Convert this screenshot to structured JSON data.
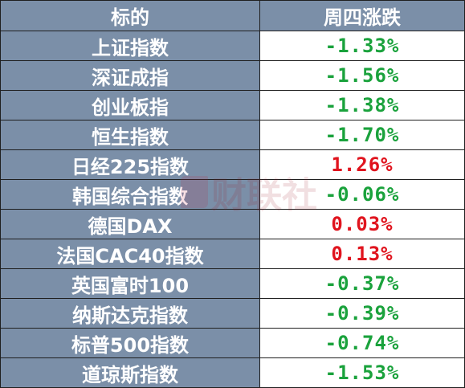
{
  "header": {
    "col_name": "标的",
    "col_change": "周四涨跌"
  },
  "rows": [
    {
      "name": "上证指数",
      "change": "-1.33%",
      "direction": "down"
    },
    {
      "name": "深证成指",
      "change": "-1.56%",
      "direction": "down"
    },
    {
      "name": "创业板指",
      "change": "-1.38%",
      "direction": "down"
    },
    {
      "name": "恒生指数",
      "change": "-1.70%",
      "direction": "down"
    },
    {
      "name": "日经225指数",
      "change": "1.26%",
      "direction": "up"
    },
    {
      "name": "韩国综合指数",
      "change": "-0.06%",
      "direction": "down"
    },
    {
      "name": "德国DAX",
      "change": "0.03%",
      "direction": "up"
    },
    {
      "name": "法国CAC40指数",
      "change": "0.13%",
      "direction": "up"
    },
    {
      "name": "英国富时100",
      "change": "-0.37%",
      "direction": "down"
    },
    {
      "name": "纳斯达克指数",
      "change": "-0.39%",
      "direction": "down"
    },
    {
      "name": "标普500指数",
      "change": "-0.74%",
      "direction": "down"
    },
    {
      "name": "道琼斯指数",
      "change": "-1.53%",
      "direction": "down"
    }
  ],
  "watermark": {
    "text": "财联社"
  },
  "colors": {
    "header_bg": "#7b8fa8",
    "up": "#e0141e",
    "down": "#1aa23c"
  }
}
